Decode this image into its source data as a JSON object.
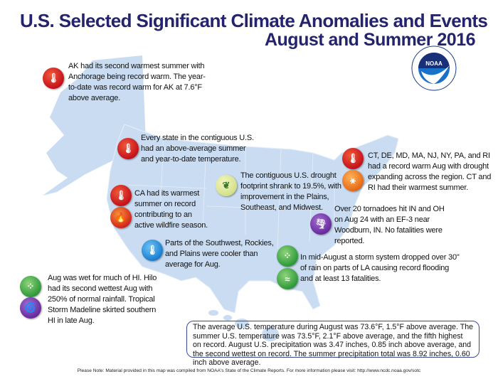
{
  "header": {
    "title": "U.S. Selected Significant Climate Anomalies and Events",
    "subtitle": "August and Summer 2016"
  },
  "logo": {
    "text": "NOAA",
    "ring_text": "NATIONAL OCEANIC AND ATMOSPHERIC ADMINISTRATION · U.S. DEPARTMENT OF COMMERCE"
  },
  "colors": {
    "title": "#24246e",
    "land": "#c9dcf2",
    "warm": "#c4121a",
    "cool": "#1a7fd0",
    "wet": "#2e9a3a",
    "drought": "#e56a17",
    "storm": "#6a2a9e"
  },
  "events": [
    {
      "id": "alaska",
      "icons": [
        "thermometer-warm"
      ],
      "lines": [
        "AK had its second warmest summer with",
        "Anchorage being record warm. The year-",
        "to-date was record warm for AK at 7.6°F",
        "above average."
      ]
    },
    {
      "id": "contiguous",
      "icons": [
        "thermometer-warm"
      ],
      "lines": [
        "Every state in the contiguous U.S.",
        "had an above-average summer",
        "and year-to-date temperature."
      ]
    },
    {
      "id": "drought",
      "icons": [
        "drought-improvement"
      ],
      "lines": [
        "The contiguous U.S. drought",
        "footprint shrank to 19.5%, with",
        "improvement in the Plains,",
        "Southeast, and Midwest."
      ]
    },
    {
      "id": "california",
      "icons": [
        "thermometer-warm",
        "wildfire"
      ],
      "lines": [
        "CA had its warmest",
        "summer on record",
        "contributing to an",
        "active wildfire season."
      ]
    },
    {
      "id": "northeast",
      "icons": [
        "thermometer-warm",
        "drought"
      ],
      "lines": [
        "CT, DE, MD, MA, NJ, NY, PA, and RI",
        "had a record warm Aug with drought",
        "expanding across the region. CT and",
        "RI had their warmest summer."
      ]
    },
    {
      "id": "tornadoes",
      "icons": [
        "tornado"
      ],
      "lines": [
        "Over 20 tornadoes hit IN and OH",
        "on Aug 24 with an EF-3 near",
        "Woodburn, IN. No fatalities were",
        "reported."
      ]
    },
    {
      "id": "southwest",
      "icons": [
        "thermometer-cool"
      ],
      "lines": [
        "Parts of the Southwest, Rockies,",
        "and Plains were cooler than",
        "average for Aug."
      ]
    },
    {
      "id": "louisiana",
      "icons": [
        "heavy-rain",
        "flood"
      ],
      "lines": [
        "In mid-August a storm system dropped over 30\"",
        "of rain on parts of LA causing record flooding",
        "and at least 13 fatalities."
      ]
    },
    {
      "id": "hawaii",
      "icons": [
        "heavy-rain",
        "tropical-storm"
      ],
      "lines": [
        "Aug was wet for much of HI. Hilo",
        "had its second wettest Aug with",
        "250% of normal rainfall. Tropical",
        "Storm Madeline skirted southern",
        "HI in late Aug."
      ]
    }
  ],
  "summary": "The average U.S. temperature during August was 73.6°F, 1.5°F above average. The summer U.S. temperature was 73.5°F, 2.1°F above average, and the fifth highest on record. August U.S. precipitation was 3.47 inches, 0.85 inch above average, and the second wettest on record. The summer precipitation total was 8.92 inches, 0.60 inch above average.",
  "footer": "Please Note: Material provided in this map was compiled from NOAA's State of the Climate Reports. For more information please visit: http://www.ncdc.noaa.gov/sotc"
}
